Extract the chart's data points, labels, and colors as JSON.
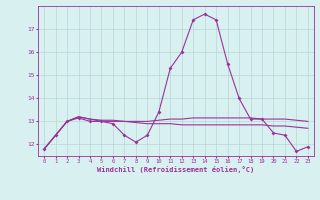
{
  "x": [
    0,
    1,
    2,
    3,
    4,
    5,
    6,
    7,
    8,
    9,
    10,
    11,
    12,
    13,
    14,
    15,
    16,
    17,
    18,
    19,
    20,
    21,
    22,
    23
  ],
  "line1": [
    11.8,
    12.4,
    13.0,
    13.15,
    13.0,
    13.0,
    12.9,
    12.4,
    12.1,
    12.4,
    13.4,
    15.3,
    16.0,
    17.4,
    17.65,
    17.4,
    15.5,
    14.0,
    13.1,
    13.1,
    12.5,
    12.4,
    11.7,
    11.9
  ],
  "line2": [
    11.8,
    12.4,
    13.0,
    13.2,
    13.1,
    13.05,
    13.05,
    13.0,
    12.95,
    12.9,
    12.9,
    12.9,
    12.85,
    12.85,
    12.85,
    12.85,
    12.85,
    12.85,
    12.85,
    12.85,
    12.8,
    12.8,
    12.75,
    12.7
  ],
  "line3": [
    11.8,
    12.4,
    13.0,
    13.2,
    13.1,
    13.0,
    13.0,
    13.0,
    13.0,
    13.0,
    13.05,
    13.1,
    13.1,
    13.15,
    13.15,
    13.15,
    13.15,
    13.15,
    13.15,
    13.1,
    13.1,
    13.1,
    13.05,
    13.0
  ],
  "line_color": "#993399",
  "bg_color": "#d8f0f0",
  "xlabel": "Windchill (Refroidissement éolien,°C)",
  "ylim": [
    11.5,
    18.0
  ],
  "xlim_min": -0.5,
  "xlim_max": 23.5,
  "yticks": [
    12,
    13,
    14,
    15,
    16,
    17
  ],
  "xticks": [
    0,
    1,
    2,
    3,
    4,
    5,
    6,
    7,
    8,
    9,
    10,
    11,
    12,
    13,
    14,
    15,
    16,
    17,
    18,
    19,
    20,
    21,
    22,
    23
  ]
}
